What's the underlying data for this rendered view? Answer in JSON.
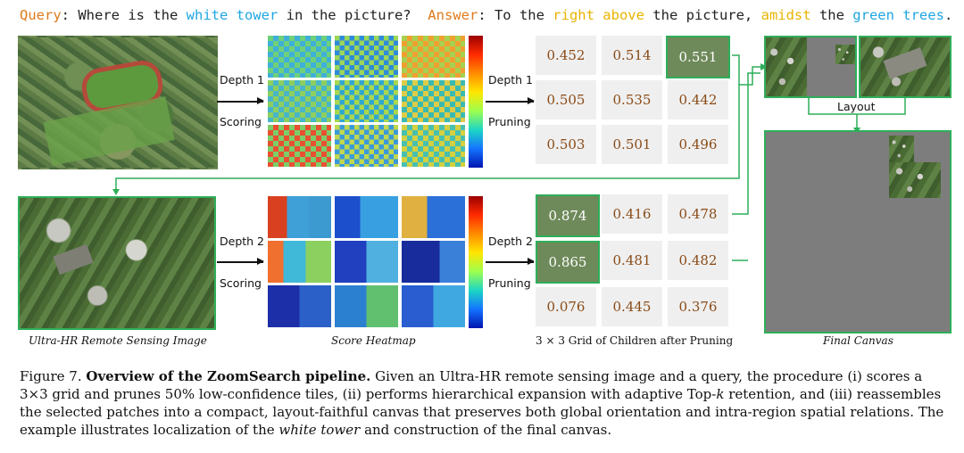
{
  "query": {
    "q_label": "Query",
    "q_text1": ": Where is the ",
    "q_target": "white tower",
    "q_text2": " in the picture?",
    "a_label": "Answer",
    "a_text1": ": To the ",
    "a_dir": "right above",
    "a_text2": " the picture, ",
    "a_amid": "amidst",
    "a_text3": " the ",
    "a_trees": "green trees",
    "a_end": "."
  },
  "stage_labels": {
    "depth1_left": "Depth 1",
    "scoring1": "Scoring",
    "depth1_right": "Depth 1",
    "pruning1": "Pruning",
    "depth2_left": "Depth 2",
    "scoring2": "Scoring",
    "depth2_right": "Depth 2",
    "pruning2": "Pruning",
    "layout": "Layout"
  },
  "grid1": {
    "row1": [
      "0.452",
      "0.514",
      "0.551"
    ],
    "row2": [
      "0.505",
      "0.535",
      "0.442"
    ],
    "row3": [
      "0.503",
      "0.501",
      "0.496"
    ]
  },
  "grid2": {
    "row1": [
      "0.874",
      "0.416",
      "0.478"
    ],
    "row2": [
      "0.865",
      "0.481",
      "0.482"
    ],
    "row3": [
      "0.076",
      "0.445",
      "0.376"
    ]
  },
  "column_captions": {
    "image": "Ultra-HR Remote Sensing Image",
    "heatmap": "Score Heatmap",
    "grid": "3 × 3 Grid of Children after Pruning",
    "canvas": "Final Canvas"
  },
  "figure_caption": {
    "label": "Figure 7.",
    "title": "Overview of the ZoomSearch pipeline.",
    "body1": " Given an Ultra-HR remote sensing image and a query, the procedure (i) scores a 3×3 grid and prunes 50% low-confidence tiles, (ii) performs hierarchical expansion with adaptive Top-",
    "k": "k",
    "body2": " retention, and (iii) reassembles the selected patches into a compact, layout-faithful canvas that preserves both global orientation and intra-region spatial relations. The example illustrates localization of the ",
    "target": "white tower",
    "body3": " and construction of the final canvas."
  },
  "colors": {
    "accent_green": "#2fae5a",
    "query_orange": "#e07a1a",
    "target_blue": "#1fa6e0",
    "direction_gold": "#e8b400",
    "score_brown": "#8a4b17"
  }
}
